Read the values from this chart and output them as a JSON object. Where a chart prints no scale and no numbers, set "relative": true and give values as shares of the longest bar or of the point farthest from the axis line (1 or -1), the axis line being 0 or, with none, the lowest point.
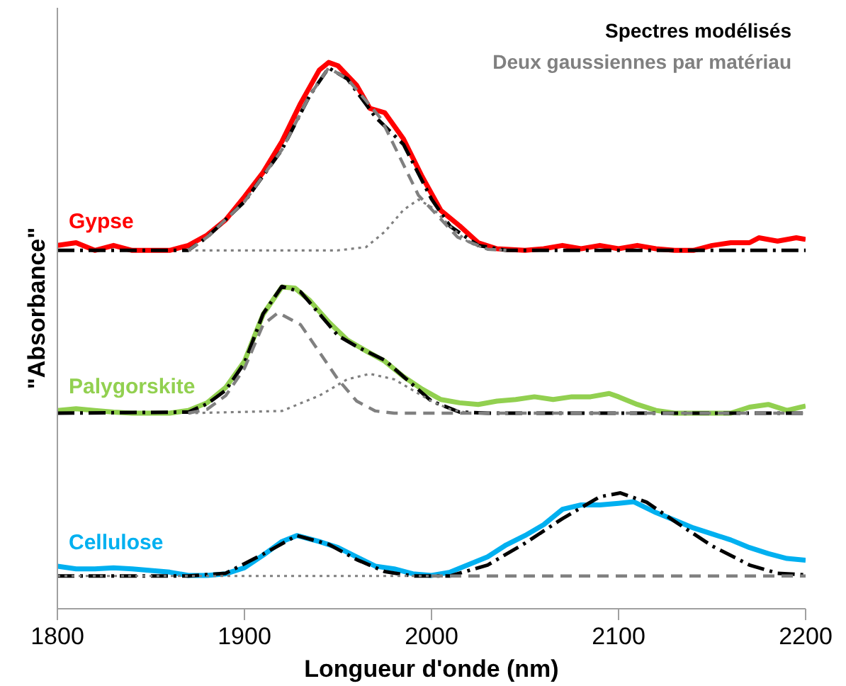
{
  "chart_data": {
    "type": "line",
    "relative": true,
    "xlabel": "Longueur d'onde (nm)",
    "ylabel": "\"Absorbance\"",
    "xlim": [
      1800,
      2200
    ],
    "xticks": [
      1800,
      1900,
      2000,
      2100,
      2200
    ],
    "grid": false,
    "marker": "none",
    "annotations": [
      "Spectres modélisés",
      "Deux gaussiennes par matériau"
    ],
    "series": [
      {
        "name": "Gypse",
        "color": "#ff0000",
        "line_style": "solid",
        "x": [
          1800,
          1810,
          1820,
          1830,
          1840,
          1850,
          1860,
          1870,
          1880,
          1890,
          1900,
          1910,
          1920,
          1930,
          1940,
          1945,
          1950,
          1960,
          1967,
          1975,
          1985,
          1995,
          2005,
          2015,
          2025,
          2035,
          2050,
          2060,
          2070,
          2080,
          2090,
          2100,
          2110,
          2120,
          2130,
          2140,
          2150,
          2160,
          2170,
          2175,
          2185,
          2195,
          2200
        ],
        "values": [
          0.665,
          0.67,
          0.656,
          0.665,
          0.656,
          0.656,
          0.656,
          0.665,
          0.684,
          0.712,
          0.754,
          0.799,
          0.855,
          0.925,
          0.986,
          1,
          0.994,
          0.958,
          0.916,
          0.908,
          0.86,
          0.791,
          0.729,
          0.701,
          0.67,
          0.659,
          0.656,
          0.659,
          0.665,
          0.659,
          0.665,
          0.659,
          0.665,
          0.659,
          0.656,
          0.656,
          0.665,
          0.67,
          0.67,
          0.679,
          0.673,
          0.679,
          0.676
        ]
      },
      {
        "color": "#000000",
        "line_style": "dashdot",
        "x": [
          1800,
          1870,
          1880,
          1900,
          1920,
          1935,
          1945,
          1955,
          1970,
          1985,
          2000,
          2010,
          2025,
          2040,
          2200
        ],
        "values": [
          0.656,
          0.656,
          0.68,
          0.745,
          0.84,
          0.94,
          0.99,
          0.97,
          0.9,
          0.85,
          0.75,
          0.7,
          0.665,
          0.656,
          0.656
        ]
      },
      {
        "color": "#808080",
        "line_style": "dashed",
        "x": [
          1870,
          1880,
          1900,
          1920,
          1935,
          1945,
          1955,
          1965,
          1973,
          1993,
          2014,
          2030,
          2040
        ],
        "values": [
          0.656,
          0.68,
          0.745,
          0.84,
          0.94,
          0.99,
          0.97,
          0.93,
          0.897,
          0.757,
          0.68,
          0.658,
          0.656
        ]
      },
      {
        "color": "#808080",
        "line_style": "dotted",
        "x": [
          1870,
          1950,
          1965,
          1975,
          1985,
          1993,
          2000,
          2010,
          2020,
          2030,
          2040
        ],
        "values": [
          0.656,
          0.656,
          0.662,
          0.69,
          0.73,
          0.749,
          0.735,
          0.7,
          0.67,
          0.658,
          0.656
        ]
      },
      {
        "name": "Palygorskite",
        "color": "#92d050",
        "line_style": "solid",
        "x": [
          1800,
          1810,
          1820,
          1830,
          1840,
          1850,
          1860,
          1870,
          1880,
          1890,
          1900,
          1910,
          1920,
          1927,
          1935,
          1945,
          1955,
          1965,
          1975,
          1985,
          1995,
          2005,
          2015,
          2025,
          2035,
          2045,
          2055,
          2065,
          2075,
          2085,
          2095,
          2100,
          2110,
          2120,
          2130,
          2140,
          2150,
          2160,
          2170,
          2180,
          2190,
          2200
        ],
        "values": [
          0.363,
          0.366,
          0.363,
          0.36,
          0.358,
          0.358,
          0.358,
          0.363,
          0.377,
          0.405,
          0.453,
          0.539,
          0.589,
          0.587,
          0.564,
          0.525,
          0.492,
          0.472,
          0.453,
          0.425,
          0.402,
          0.383,
          0.377,
          0.374,
          0.38,
          0.383,
          0.388,
          0.383,
          0.388,
          0.388,
          0.394,
          0.388,
          0.374,
          0.363,
          0.358,
          0.358,
          0.358,
          0.358,
          0.369,
          0.374,
          0.363,
          0.371
        ]
      },
      {
        "color": "#000000",
        "line_style": "dashdot",
        "x": [
          1800,
          1870,
          1880,
          1890,
          1900,
          1910,
          1920,
          1930,
          1940,
          1950,
          1960,
          1975,
          1990,
          2000,
          2015,
          2030,
          2200
        ],
        "values": [
          0.358,
          0.36,
          0.375,
          0.4,
          0.45,
          0.54,
          0.59,
          0.58,
          0.54,
          0.5,
          0.48,
          0.455,
          0.41,
          0.38,
          0.36,
          0.358,
          0.358
        ]
      },
      {
        "color": "#808080",
        "line_style": "dashed",
        "x": [
          1870,
          1880,
          1890,
          1900,
          1910,
          1918,
          1930,
          1940,
          1950,
          1960,
          1970,
          1980,
          2200
        ],
        "values": [
          0.358,
          0.365,
          0.39,
          0.44,
          0.52,
          0.542,
          0.52,
          0.47,
          0.42,
          0.38,
          0.362,
          0.358,
          0.358
        ]
      },
      {
        "color": "#808080",
        "line_style": "dotted",
        "x": [
          1870,
          1920,
          1940,
          1955,
          1967,
          1980,
          1990,
          2000,
          2010,
          2020
        ],
        "values": [
          0.358,
          0.362,
          0.39,
          0.42,
          0.43,
          0.42,
          0.4,
          0.38,
          0.365,
          0.358
        ]
      },
      {
        "name": "Cellulose",
        "color": "#00b0f0",
        "line_style": "solid",
        "x": [
          1800,
          1810,
          1820,
          1830,
          1840,
          1850,
          1860,
          1870,
          1880,
          1890,
          1900,
          1910,
          1920,
          1928,
          1940,
          1950,
          1960,
          1970,
          1980,
          1990,
          2000,
          2010,
          2020,
          2030,
          2040,
          2050,
          2060,
          2070,
          2080,
          2090,
          2100,
          2108,
          2120,
          2130,
          2140,
          2150,
          2160,
          2170,
          2180,
          2190,
          2200
        ],
        "values": [
          0.078,
          0.073,
          0.073,
          0.075,
          0.073,
          0.07,
          0.067,
          0.061,
          0.061,
          0.064,
          0.075,
          0.098,
          0.123,
          0.134,
          0.123,
          0.112,
          0.095,
          0.078,
          0.073,
          0.064,
          0.061,
          0.067,
          0.081,
          0.095,
          0.117,
          0.134,
          0.154,
          0.182,
          0.19,
          0.19,
          0.193,
          0.196,
          0.176,
          0.162,
          0.148,
          0.137,
          0.126,
          0.112,
          0.101,
          0.092,
          0.089
        ]
      },
      {
        "color": "#000000",
        "line_style": "dashdot",
        "x": [
          1800,
          1870,
          1890,
          1910,
          1928,
          1945,
          1960,
          1975,
          1990,
          2010,
          2030,
          2050,
          2070,
          2090,
          2101,
          2115,
          2130,
          2150,
          2170,
          2185,
          2200
        ],
        "values": [
          0.06,
          0.06,
          0.065,
          0.1,
          0.134,
          0.118,
          0.09,
          0.068,
          0.06,
          0.06,
          0.08,
          0.12,
          0.165,
          0.205,
          0.212,
          0.195,
          0.16,
          0.115,
          0.08,
          0.065,
          0.062
        ]
      },
      {
        "color": "#808080",
        "line_style": "dotted",
        "x": [
          1800,
          2000
        ],
        "values": [
          0.06,
          0.06
        ]
      },
      {
        "color": "#808080",
        "line_style": "dashed",
        "x": [
          2000,
          2200
        ],
        "values": [
          0.06,
          0.06
        ]
      }
    ]
  }
}
